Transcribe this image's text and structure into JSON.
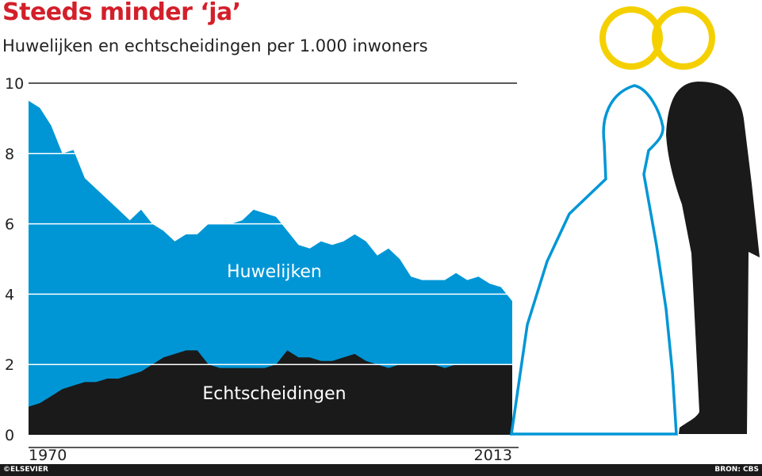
{
  "title": "Steeds minder ‘ja’",
  "subtitle": "Huwelijken en echtscheidingen per 1.000 inwoners",
  "footer": {
    "credit": "©ELSEVIER",
    "source": "BRON: CBS"
  },
  "colors": {
    "marriages": "#0096d6",
    "divorces": "#1a1a1a",
    "title": "#d31f2a",
    "rings": "#f5d000"
  },
  "decoration": {
    "icon": "bride-and-groom-with-wedding-rings"
  },
  "chart_data": {
    "type": "area",
    "ylim": [
      0,
      10
    ],
    "yticks": [
      0,
      2,
      4,
      6,
      8,
      10
    ],
    "xticks": [
      "1970",
      "2013"
    ],
    "xlim": [
      1970,
      2013
    ],
    "grid": true,
    "series": [
      {
        "name": "Huwelijken",
        "x": [
          1970,
          1971,
          1972,
          1973,
          1974,
          1975,
          1976,
          1977,
          1978,
          1979,
          1980,
          1981,
          1982,
          1983,
          1984,
          1985,
          1986,
          1987,
          1988,
          1989,
          1990,
          1991,
          1992,
          1993,
          1994,
          1995,
          1996,
          1997,
          1998,
          1999,
          2000,
          2001,
          2002,
          2003,
          2004,
          2005,
          2006,
          2007,
          2008,
          2009,
          2010,
          2011,
          2012,
          2013
        ],
        "values": [
          9.5,
          9.3,
          8.8,
          8.0,
          8.1,
          7.3,
          7.0,
          6.7,
          6.4,
          6.1,
          6.4,
          6.0,
          5.8,
          5.5,
          5.7,
          5.7,
          6.0,
          6.0,
          6.0,
          6.1,
          6.4,
          6.3,
          6.2,
          5.8,
          5.4,
          5.3,
          5.5,
          5.4,
          5.5,
          5.7,
          5.5,
          5.1,
          5.3,
          5.0,
          4.5,
          4.4,
          4.4,
          4.4,
          4.6,
          4.4,
          4.5,
          4.3,
          4.2,
          3.8
        ]
      },
      {
        "name": "Echtscheidingen",
        "x": [
          1970,
          1971,
          1972,
          1973,
          1974,
          1975,
          1976,
          1977,
          1978,
          1979,
          1980,
          1981,
          1982,
          1983,
          1984,
          1985,
          1986,
          1987,
          1988,
          1989,
          1990,
          1991,
          1992,
          1993,
          1994,
          1995,
          1996,
          1997,
          1998,
          1999,
          2000,
          2001,
          2002,
          2003,
          2004,
          2005,
          2006,
          2007,
          2008,
          2009,
          2010,
          2011,
          2012,
          2013
        ],
        "values": [
          0.8,
          0.9,
          1.1,
          1.3,
          1.4,
          1.5,
          1.5,
          1.6,
          1.6,
          1.7,
          1.8,
          2.0,
          2.2,
          2.3,
          2.4,
          2.4,
          2.0,
          1.9,
          1.9,
          1.9,
          1.9,
          1.9,
          2.0,
          2.4,
          2.2,
          2.2,
          2.1,
          2.1,
          2.2,
          2.3,
          2.1,
          2.0,
          1.9,
          2.0,
          2.0,
          2.0,
          2.0,
          1.9,
          2.0,
          2.0,
          2.0,
          2.0,
          2.0,
          2.0
        ]
      }
    ]
  }
}
